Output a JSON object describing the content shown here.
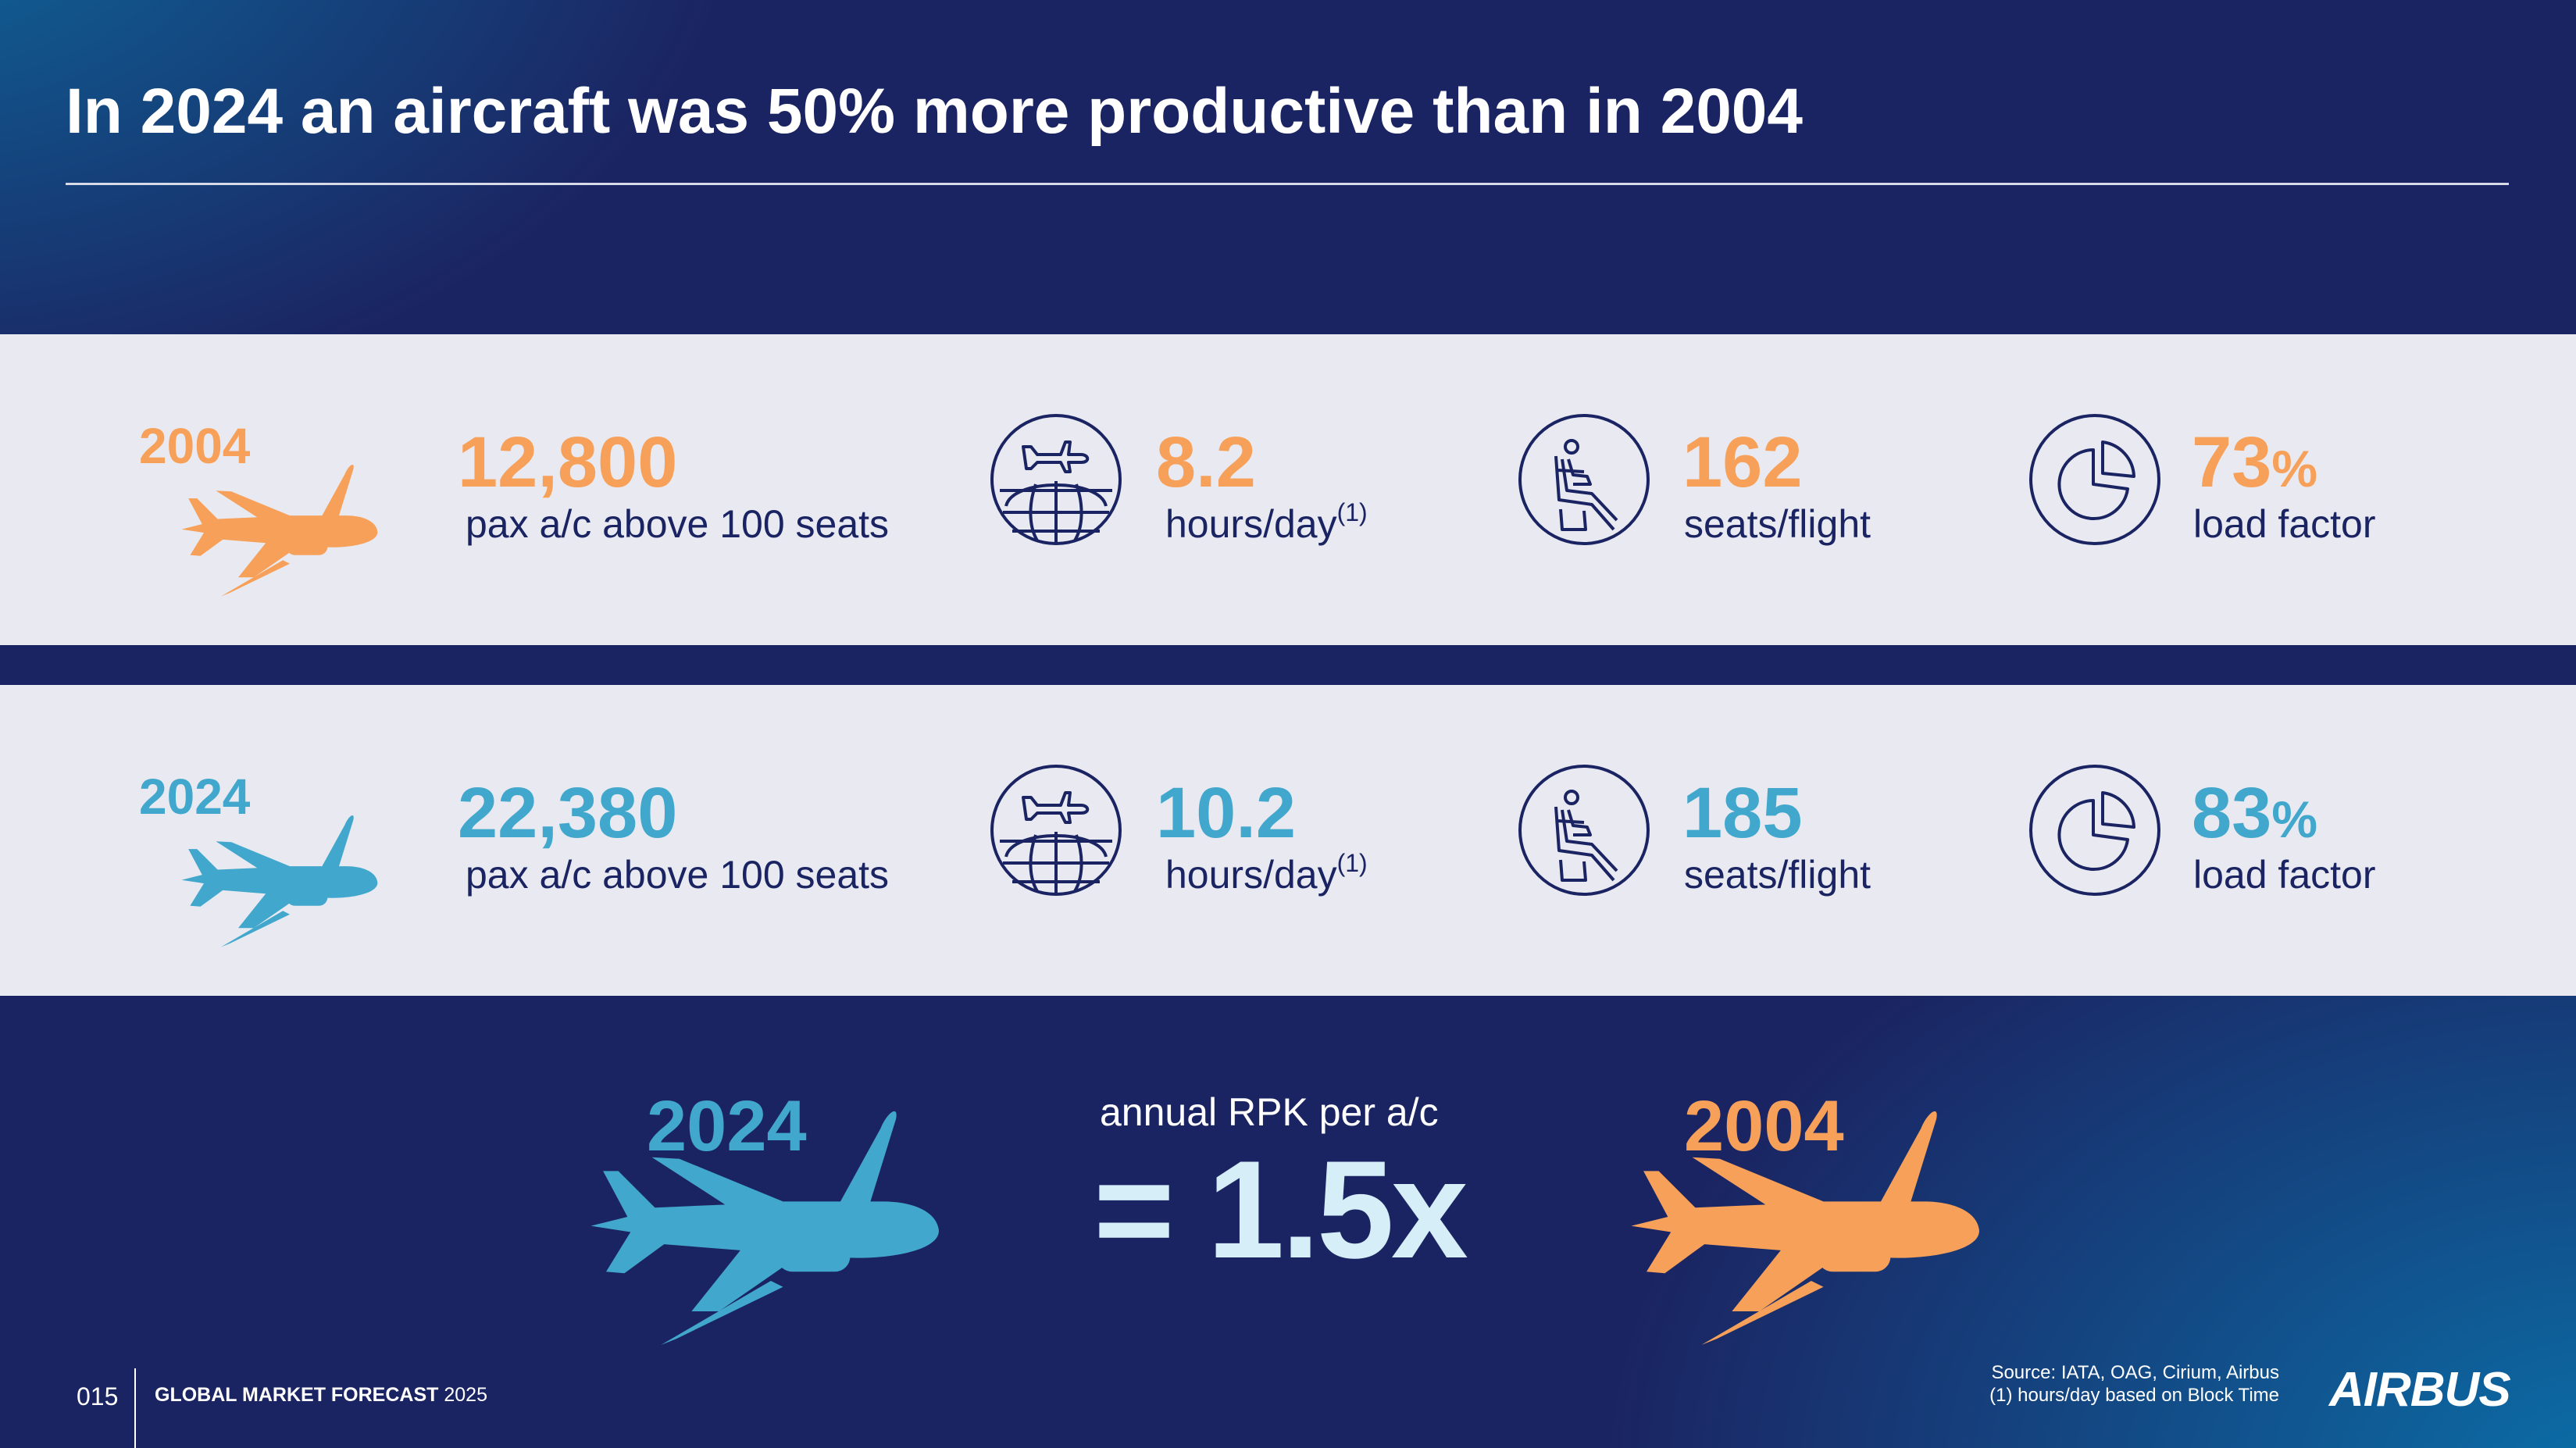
{
  "title": "In 2024 an aircraft was 50% more productive than in 2004",
  "colors": {
    "accent_2004": "#f6a05a",
    "accent_2024": "#42a7cc",
    "navy": "#1b2462",
    "band": "#e9eaf1"
  },
  "rows": [
    {
      "year": "2004",
      "fleet_value": "12,800",
      "fleet_label": "pax a/c above 100 seats",
      "hours_value": "8.2",
      "hours_label": "hours/day",
      "hours_note": "(1)",
      "seats_value": "162",
      "seats_label": "seats/flight",
      "load_value": "73",
      "load_unit": "%",
      "load_label": "load factor"
    },
    {
      "year": "2024",
      "fleet_value": "22,380",
      "fleet_label": "pax a/c above 100 seats",
      "hours_value": "10.2",
      "hours_label": "hours/day",
      "hours_note": "(1)",
      "seats_value": "185",
      "seats_label": "seats/flight",
      "load_value": "83",
      "load_unit": "%",
      "load_label": "load factor"
    }
  ],
  "comparison": {
    "left_year": "2024",
    "label": "annual RPK per a/c",
    "value": "= 1.5x",
    "right_year": "2004"
  },
  "footer": {
    "page_number": "015",
    "publication_bold": "GLOBAL MARKET FORECAST",
    "publication_year": "2025",
    "source_line1": "Source: IATA, OAG, Cirium, Airbus",
    "source_line2": "(1) hours/day based on Block Time",
    "logo": "AIRBUS"
  },
  "icons": [
    "airplane-icon",
    "globe-icon",
    "seat-icon",
    "pie-chart-icon"
  ]
}
